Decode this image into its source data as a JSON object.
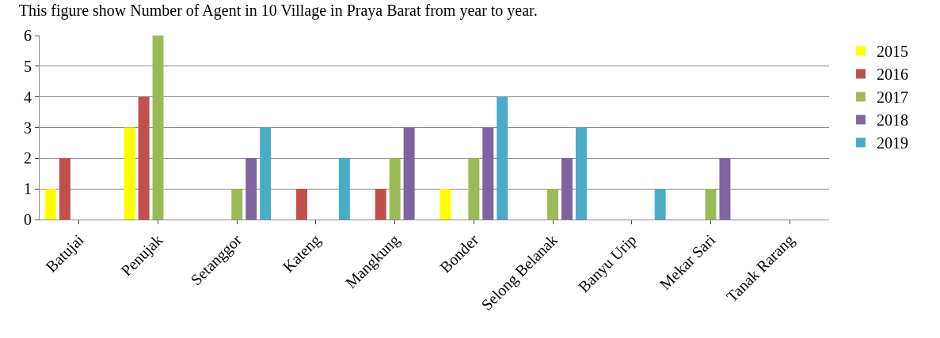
{
  "chart_data": {
    "type": "bar",
    "title": "This figure show Number of Agent in 10 Village in Praya Barat from year to year.",
    "categories": [
      "Batujai",
      "Penujak",
      "Setanggor",
      "Kateng",
      "Mangkung",
      "Bonder",
      "Selong Belanak",
      "Banyu Urip",
      "Mekar Sari",
      "Tanak Rarang"
    ],
    "series": [
      {
        "name": "2015",
        "color": "#ffff00",
        "values": [
          1,
          3,
          0,
          0,
          0,
          1,
          0,
          0,
          0,
          0
        ]
      },
      {
        "name": "2016",
        "color": "#c0504d",
        "values": [
          2,
          4,
          0,
          1,
          1,
          0,
          0,
          0,
          0,
          0
        ]
      },
      {
        "name": "2017",
        "color": "#9bbb59",
        "values": [
          0,
          6,
          1,
          0,
          2,
          2,
          1,
          0,
          1,
          0
        ]
      },
      {
        "name": "2018",
        "color": "#8064a2",
        "values": [
          0,
          0,
          2,
          0,
          3,
          3,
          2,
          0,
          2,
          0
        ]
      },
      {
        "name": "2019",
        "color": "#4bacc6",
        "values": [
          0,
          0,
          3,
          2,
          0,
          4,
          3,
          1,
          0,
          0
        ]
      }
    ],
    "ylim": [
      0,
      6
    ],
    "yticks": [
      0,
      1,
      2,
      3,
      4,
      5,
      6
    ],
    "grid": "y",
    "legend": "right"
  }
}
